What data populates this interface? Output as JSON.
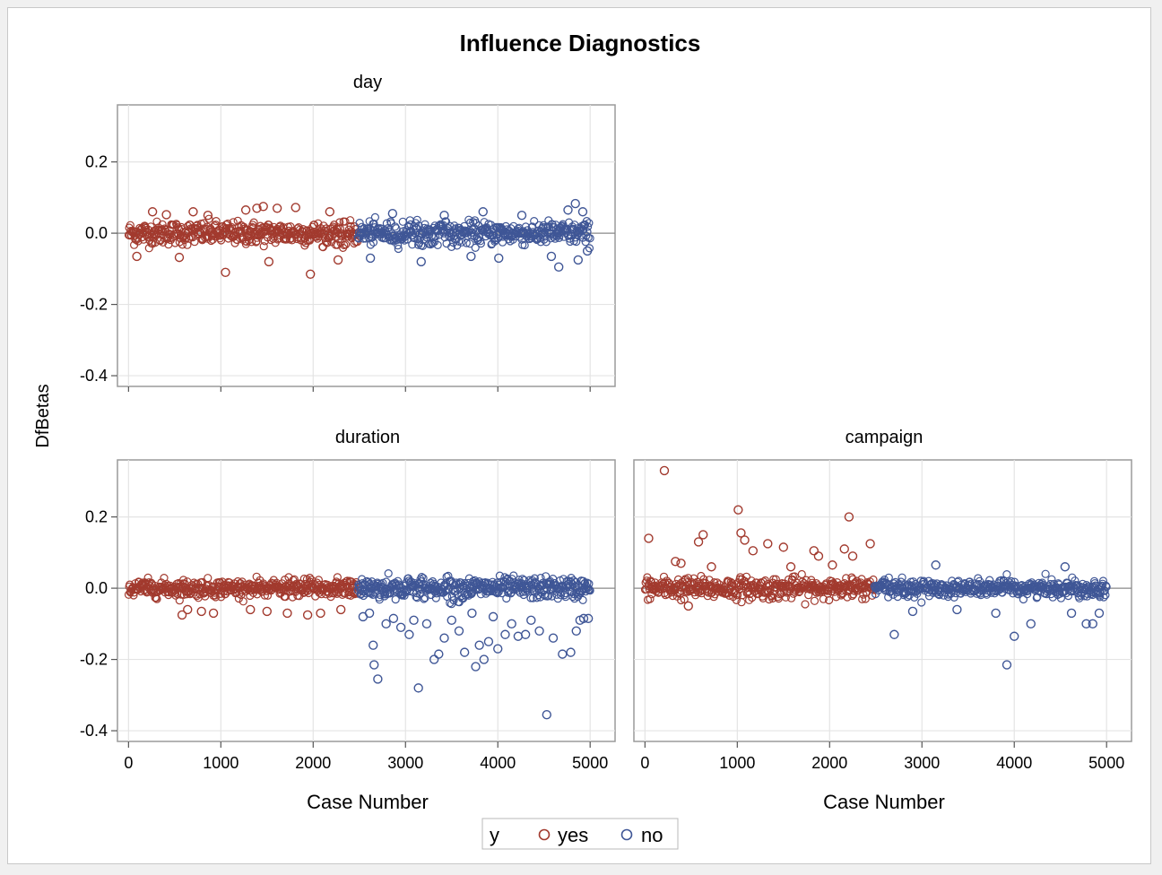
{
  "chart_data": {
    "type": "scatter",
    "title": "Influence Diagnostics",
    "ylabel": "DfBetas",
    "xlabel": "Case Number",
    "xlim": [
      -120,
      5270
    ],
    "ylim": [
      -0.43,
      0.36
    ],
    "x_ticks": [
      "0",
      "1000",
      "2000",
      "3000",
      "4000",
      "5000"
    ],
    "y_ticks": [
      "0.2",
      "0.0",
      "-0.2",
      "-0.4"
    ],
    "x_tick_values": [
      0,
      1000,
      2000,
      3000,
      4000,
      5000
    ],
    "y_tick_values": [
      0.2,
      0.0,
      -0.2,
      -0.4
    ],
    "grid": true,
    "legend": {
      "title": "y",
      "placement": "bottom",
      "entries": [
        {
          "label": "yes",
          "color": "#a23a2e"
        },
        {
          "label": "no",
          "color": "#3f5696"
        }
      ]
    },
    "split_case": 2480,
    "n_cases": 5000,
    "panels": [
      {
        "name": "day",
        "band_sd_yes": 0.016,
        "band_sd_no": 0.016,
        "yes_outliers": [
          [
            90,
            -0.065
          ],
          [
            260,
            0.06
          ],
          [
            410,
            0.052
          ],
          [
            550,
            -0.068
          ],
          [
            700,
            0.06
          ],
          [
            860,
            0.05
          ],
          [
            1050,
            -0.11
          ],
          [
            1270,
            0.065
          ],
          [
            1390,
            0.07
          ],
          [
            1460,
            0.075
          ],
          [
            1520,
            -0.08
          ],
          [
            1610,
            0.07
          ],
          [
            1810,
            0.072
          ],
          [
            1970,
            -0.115
          ],
          [
            2180,
            0.06
          ],
          [
            2270,
            -0.075
          ]
        ],
        "no_outliers": [
          [
            2620,
            -0.07
          ],
          [
            2860,
            0.055
          ],
          [
            3170,
            -0.08
          ],
          [
            3420,
            0.05
          ],
          [
            3710,
            -0.065
          ],
          [
            3840,
            0.06
          ],
          [
            4010,
            -0.07
          ],
          [
            4260,
            0.05
          ],
          [
            4580,
            -0.065
          ],
          [
            4660,
            -0.095
          ],
          [
            4760,
            0.065
          ],
          [
            4840,
            0.083
          ],
          [
            4870,
            -0.075
          ],
          [
            4920,
            0.06
          ],
          [
            4970,
            -0.05
          ]
        ]
      },
      {
        "name": "duration",
        "band_sd_yes": 0.012,
        "band_sd_no": 0.015,
        "yes_outliers": [
          [
            580,
            -0.075
          ],
          [
            640,
            -0.06
          ],
          [
            790,
            -0.065
          ],
          [
            920,
            -0.07
          ],
          [
            1320,
            -0.06
          ],
          [
            1500,
            -0.065
          ],
          [
            1720,
            -0.07
          ],
          [
            1940,
            -0.075
          ],
          [
            2080,
            -0.07
          ],
          [
            2300,
            -0.06
          ]
        ],
        "no_outliers": [
          [
            2540,
            -0.08
          ],
          [
            2610,
            -0.07
          ],
          [
            2650,
            -0.16
          ],
          [
            2660,
            -0.215
          ],
          [
            2700,
            -0.255
          ],
          [
            2790,
            -0.1
          ],
          [
            2870,
            -0.085
          ],
          [
            2950,
            -0.11
          ],
          [
            3040,
            -0.13
          ],
          [
            3090,
            -0.09
          ],
          [
            3140,
            -0.28
          ],
          [
            3230,
            -0.1
          ],
          [
            3310,
            -0.2
          ],
          [
            3360,
            -0.185
          ],
          [
            3420,
            -0.14
          ],
          [
            3500,
            -0.09
          ],
          [
            3580,
            -0.12
          ],
          [
            3640,
            -0.18
          ],
          [
            3720,
            -0.07
          ],
          [
            3760,
            -0.22
          ],
          [
            3800,
            -0.16
          ],
          [
            3850,
            -0.2
          ],
          [
            3900,
            -0.15
          ],
          [
            3950,
            -0.08
          ],
          [
            4000,
            -0.17
          ],
          [
            4080,
            -0.13
          ],
          [
            4150,
            -0.1
          ],
          [
            4220,
            -0.135
          ],
          [
            4300,
            -0.13
          ],
          [
            4360,
            -0.09
          ],
          [
            4450,
            -0.12
          ],
          [
            4530,
            -0.355
          ],
          [
            4600,
            -0.14
          ],
          [
            4700,
            -0.185
          ],
          [
            4790,
            -0.18
          ],
          [
            4850,
            -0.12
          ],
          [
            4890,
            -0.09
          ],
          [
            4930,
            -0.085
          ],
          [
            4980,
            -0.085
          ]
        ]
      },
      {
        "name": "campaign",
        "band_sd_yes": 0.015,
        "band_sd_no": 0.012,
        "yes_outliers": [
          [
            40,
            0.14
          ],
          [
            210,
            0.33
          ],
          [
            330,
            0.075
          ],
          [
            390,
            0.07
          ],
          [
            470,
            -0.05
          ],
          [
            580,
            0.13
          ],
          [
            630,
            0.15
          ],
          [
            720,
            0.06
          ],
          [
            1010,
            0.22
          ],
          [
            1040,
            0.155
          ],
          [
            1080,
            0.135
          ],
          [
            1170,
            0.105
          ],
          [
            1330,
            0.125
          ],
          [
            1500,
            0.115
          ],
          [
            1580,
            0.06
          ],
          [
            1830,
            0.105
          ],
          [
            1880,
            0.09
          ],
          [
            2030,
            0.065
          ],
          [
            2160,
            0.11
          ],
          [
            2210,
            0.2
          ],
          [
            2250,
            0.09
          ],
          [
            2440,
            0.125
          ]
        ],
        "no_outliers": [
          [
            2700,
            -0.13
          ],
          [
            2900,
            -0.065
          ],
          [
            3150,
            0.065
          ],
          [
            3380,
            -0.06
          ],
          [
            3800,
            -0.07
          ],
          [
            3920,
            -0.215
          ],
          [
            4000,
            -0.135
          ],
          [
            4180,
            -0.1
          ],
          [
            4550,
            0.06
          ],
          [
            4620,
            -0.07
          ],
          [
            4780,
            -0.1
          ],
          [
            4850,
            -0.1
          ],
          [
            4920,
            -0.07
          ]
        ]
      }
    ]
  }
}
